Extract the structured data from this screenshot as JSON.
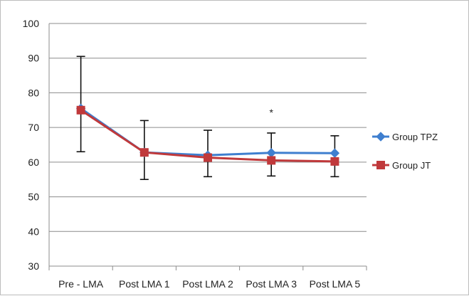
{
  "chart_data": {
    "type": "line",
    "categories": [
      "Pre - LMA",
      "Post LMA 1",
      "Post LMA 2",
      "Post LMA 3",
      "Post LMA 5"
    ],
    "ylim": [
      30,
      100
    ],
    "yticks": [
      30,
      40,
      50,
      60,
      70,
      80,
      90,
      100
    ],
    "grid": true,
    "legend_position": "right",
    "series": [
      {
        "name": "Group  TPZ",
        "color": "#3f7fcf",
        "marker": "diamond",
        "values": [
          75.5,
          62.8,
          62.0,
          62.7,
          62.6
        ],
        "error": [
          null,
          null,
          null,
          null,
          null
        ]
      },
      {
        "name": "Group  JT",
        "color": "#c0393b",
        "marker": "square",
        "values": [
          75.0,
          62.8,
          61.3,
          60.5,
          60.2
        ],
        "error_low": [
          63,
          55,
          55.8,
          56,
          55.8
        ],
        "error_high": [
          90.5,
          72,
          69.2,
          68.4,
          67.6
        ]
      }
    ],
    "annotations": [
      {
        "text": "*",
        "category_index": 3,
        "y": 74.5
      }
    ]
  }
}
